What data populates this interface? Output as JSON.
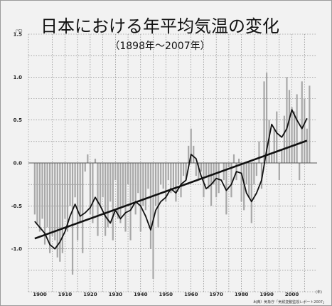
{
  "chart_data": {
    "type": "bar",
    "title": "日本における年平均気温の変化",
    "subtitle": "（1898年〜2007年）",
    "ylabel": "",
    "xlabel": "",
    "y_unit": "(℃)",
    "x_unit": "(年)",
    "source": "出典）気象庁「気候変動監視レポート2007」",
    "ylim": [
      -1.5,
      1.5
    ],
    "xlim": [
      1895.5,
      2010
    ],
    "grid": true,
    "y_ticks": [
      "1.5",
      "1.0",
      "0.5",
      "0.0",
      "-0.5",
      "-1.0"
    ],
    "x_ticks": [
      "1900",
      "1910",
      "1920",
      "1930",
      "1940",
      "1950",
      "1960",
      "1970",
      "1980",
      "1990",
      "2000"
    ],
    "series": [
      {
        "type": "bar",
        "x": [
          1898,
          1899,
          1900,
          1901,
          1902,
          1903,
          1904,
          1905,
          1906,
          1907,
          1908,
          1909,
          1910,
          1911,
          1912,
          1913,
          1914,
          1915,
          1916,
          1917,
          1918,
          1919,
          1920,
          1921,
          1922,
          1923,
          1924,
          1925,
          1926,
          1927,
          1928,
          1929,
          1930,
          1931,
          1932,
          1933,
          1934,
          1935,
          1936,
          1937,
          1938,
          1939,
          1940,
          1941,
          1942,
          1943,
          1944,
          1945,
          1946,
          1947,
          1948,
          1949,
          1950,
          1951,
          1952,
          1953,
          1954,
          1955,
          1956,
          1957,
          1958,
          1959,
          1960,
          1961,
          1962,
          1963,
          1964,
          1965,
          1966,
          1967,
          1968,
          1969,
          1970,
          1971,
          1972,
          1973,
          1974,
          1975,
          1976,
          1977,
          1978,
          1979,
          1980,
          1981,
          1982,
          1983,
          1984,
          1985,
          1986,
          1987,
          1988,
          1989,
          1990,
          1991,
          1992,
          1993,
          1994,
          1995,
          1996,
          1997,
          1998,
          1999,
          2000,
          2001,
          2002,
          2003,
          2004,
          2005,
          2006,
          2007
        ],
        "values": [
          -0.6,
          -0.7,
          -0.8,
          -0.65,
          -0.95,
          -0.75,
          -1.05,
          -0.85,
          -0.9,
          -1.1,
          -1.15,
          -1.05,
          -0.65,
          -0.8,
          -0.5,
          -1.3,
          -0.4,
          -0.9,
          -0.7,
          -1.05,
          -0.1,
          0.1,
          -0.6,
          -0.7,
          0.05,
          -0.85,
          -0.5,
          -0.4,
          -0.85,
          -0.75,
          -0.45,
          -0.9,
          -0.2,
          -0.65,
          -0.7,
          -0.5,
          -0.8,
          -0.25,
          -0.9,
          -0.45,
          -0.6,
          -0.35,
          -0.8,
          -0.5,
          -0.55,
          -0.3,
          -1.0,
          -1.35,
          -0.5,
          -0.75,
          -0.25,
          -0.3,
          -0.45,
          -0.2,
          -0.35,
          -0.3,
          -0.45,
          -0.25,
          -0.4,
          -0.15,
          -0.2,
          0.2,
          0.4,
          0.2,
          -0.15,
          -0.2,
          -0.1,
          -0.4,
          -0.15,
          -0.3,
          -0.5,
          -0.25,
          -0.4,
          -0.35,
          0.0,
          -0.2,
          -0.6,
          -0.05,
          -0.4,
          0.1,
          -0.2,
          0.05,
          -0.45,
          -0.55,
          -0.25,
          -0.4,
          -0.7,
          -0.25,
          -0.15,
          0.25,
          -0.3,
          0.95,
          1.05,
          0.5,
          0.1,
          0.4,
          0.6,
          -0.2,
          0.15,
          0.55,
          1.0,
          0.85,
          0.65,
          0.6,
          0.8,
          -0.2,
          0.95,
          0.75,
          0.4,
          0.9
        ]
      },
      {
        "type": "line",
        "name": "",
        "x": [
          1898,
          1900,
          1902,
          1904,
          1906,
          1908,
          1910,
          1912,
          1914,
          1916,
          1918,
          1920,
          1922,
          1924,
          1926,
          1928,
          1930,
          1932,
          1934,
          1936,
          1938,
          1940,
          1942,
          1944,
          1946,
          1948,
          1950,
          1952,
          1954,
          1956,
          1958,
          1960,
          1962,
          1964,
          1966,
          1968,
          1970,
          1972,
          1974,
          1976,
          1978,
          1980,
          1982,
          1984,
          1986,
          1988,
          1990,
          1992,
          1994,
          1996,
          1998,
          2000,
          2002,
          2004,
          2006
        ],
        "values": [
          -0.68,
          -0.75,
          -0.82,
          -0.95,
          -1.0,
          -0.92,
          -0.8,
          -0.62,
          -0.48,
          -0.62,
          -0.58,
          -0.52,
          -0.4,
          -0.5,
          -0.62,
          -0.7,
          -0.55,
          -0.65,
          -0.58,
          -0.55,
          -0.45,
          -0.5,
          -0.62,
          -0.78,
          -0.55,
          -0.45,
          -0.4,
          -0.3,
          -0.35,
          -0.25,
          -0.2,
          0.1,
          0.05,
          -0.15,
          -0.3,
          -0.25,
          -0.18,
          -0.2,
          -0.32,
          -0.25,
          -0.1,
          -0.12,
          -0.35,
          -0.45,
          -0.35,
          -0.2,
          0.15,
          0.45,
          0.35,
          0.3,
          0.4,
          0.62,
          0.5,
          0.4,
          0.52
        ]
      },
      {
        "type": "line",
        "name": "",
        "x": [
          1898,
          2006
        ],
        "values": [
          -0.88,
          0.26
        ]
      }
    ]
  }
}
